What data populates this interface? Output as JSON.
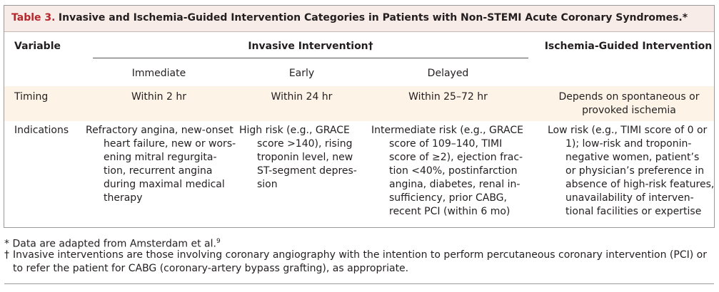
{
  "title": {
    "label": "Table 3.",
    "text": "Invasive and Ischemia-Guided Intervention Categories in Patients with Non-STEMI Acute Coronary Syndromes.*"
  },
  "header": {
    "variable": "Variable",
    "invasive": "Invasive Intervention†",
    "ischemia": "Ischemia-Guided Intervention",
    "subheaders": [
      "Immediate",
      "Early",
      "Delayed"
    ]
  },
  "rows": [
    {
      "label": "Timing",
      "cells": [
        [
          "Within 2 hr"
        ],
        [
          "Within 24 hr"
        ],
        [
          "Within 25–72 hr"
        ],
        [
          "Depends on spontaneous or",
          "provoked ischemia"
        ]
      ]
    },
    {
      "label": "Indications",
      "cells": [
        [
          "Refractory angina, new-onset",
          "heart failure, new or wors-",
          "ening mitral regurgita-",
          "tion, recurrent angina",
          "during maximal medical",
          "therapy"
        ],
        [
          "High risk (e.g., GRACE",
          "score >140), rising",
          "troponin level, new",
          "ST-segment depres-",
          "sion"
        ],
        [
          "Intermediate risk (e.g., GRACE",
          "score of 109–140, TIMI",
          "score of ≥2), ejection frac-",
          "tion <40%, postinfarction",
          "angina, diabetes, renal in-",
          "sufficiency, prior CABG,",
          "recent PCI (within 6 mo)"
        ],
        [
          "Low risk (e.g., TIMI score of 0 or",
          "1); low-risk and troponin-",
          "negative women, patient’s",
          "or physician’s preference in",
          "absence of high-risk features,",
          "unavailability of interven-",
          "tional facilities or expertise"
        ]
      ]
    }
  ],
  "footnotes": [
    {
      "symbol": "*",
      "text": "Data are adapted from Amsterdam et al.",
      "ref": "9"
    },
    {
      "symbol": "†",
      "lines": [
        "Invasive interventions are those involving coronary angiography with the intention to perform percutaneous coronary intervention (PCI) or",
        "to refer the patient for CABG (coronary-artery bypass grafting), as appropriate."
      ]
    }
  ]
}
